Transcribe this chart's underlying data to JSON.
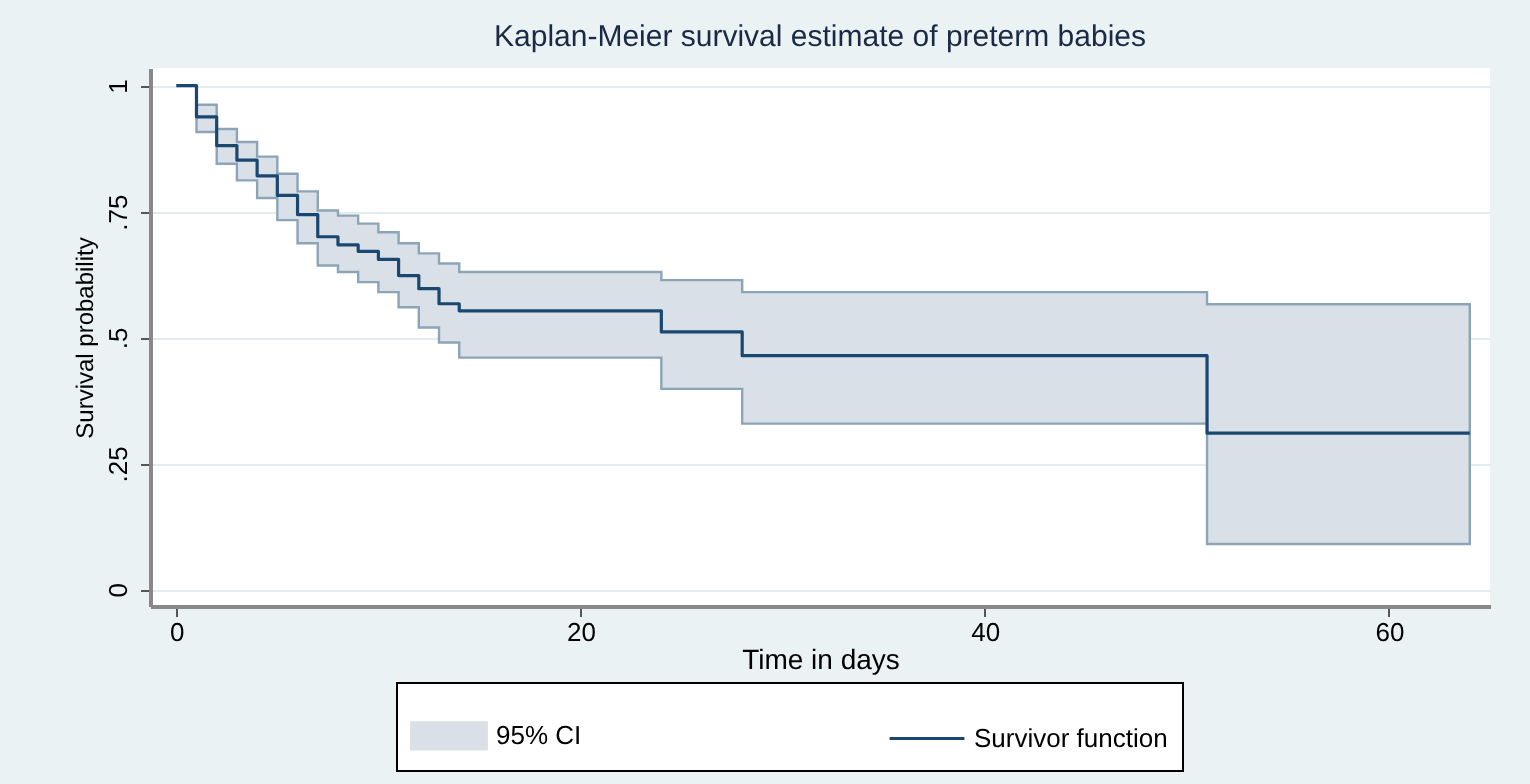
{
  "chart_data": {
    "type": "step",
    "title": "Kaplan-Meier survival estimate of preterm babies",
    "xlabel": "Time in days",
    "ylabel": "Survival probability",
    "x": [
      0,
      1,
      2,
      3,
      4,
      5,
      6,
      7,
      8,
      9,
      10,
      11,
      12,
      13,
      14,
      24,
      28,
      51,
      64
    ],
    "series": [
      {
        "name": "Survivor function",
        "color": "#1a476f",
        "values": [
          1,
          0.938,
          0.881,
          0.852,
          0.821,
          0.782,
          0.744,
          0.7,
          0.684,
          0.671,
          0.655,
          0.623,
          0.597,
          0.567,
          0.553,
          0.511,
          0.464,
          0.31,
          0.31
        ],
        "lower": [
          null,
          0.908,
          0.845,
          0.812,
          0.777,
          0.733,
          0.687,
          0.643,
          0.63,
          0.61,
          0.59,
          0.56,
          0.52,
          0.49,
          0.46,
          0.398,
          0.329,
          0.09,
          0.09
        ],
        "upper": [
          null,
          0.962,
          0.914,
          0.888,
          0.859,
          0.825,
          0.79,
          0.752,
          0.742,
          0.726,
          0.709,
          0.687,
          0.667,
          0.647,
          0.63,
          0.614,
          0.59,
          0.566,
          0.566
        ]
      }
    ],
    "annotations": [
      "95% CI"
    ],
    "xlim": [
      -1.3,
      65
    ],
    "xticks": [
      0,
      20,
      40,
      60
    ],
    "ylim": [
      -0.033,
      1.035
    ],
    "yticks": [
      {
        "value": 0,
        "label": "0"
      },
      {
        "value": 0.25,
        "label": ".25"
      },
      {
        "value": 0.5,
        "label": ".5"
      },
      {
        "value": 0.75,
        "label": ".75"
      },
      {
        "value": 1,
        "label": "1"
      }
    ],
    "grid": "y",
    "legend": "bottom"
  }
}
